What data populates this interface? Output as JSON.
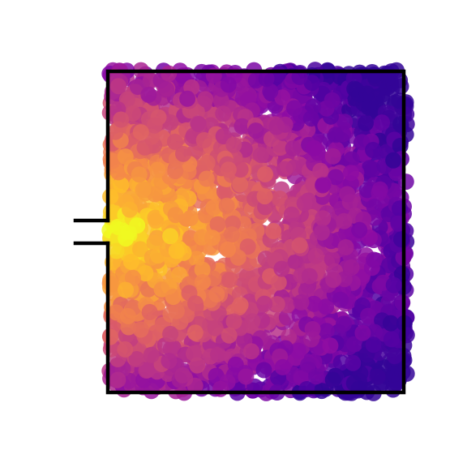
{
  "figure": {
    "colors": [
      "#0d0887",
      "#5302a3",
      "#8b0aa5",
      "#b83289",
      "#db5c68",
      "#f48849",
      "#febd2a",
      "#f0f921"
    ]
  }
}
